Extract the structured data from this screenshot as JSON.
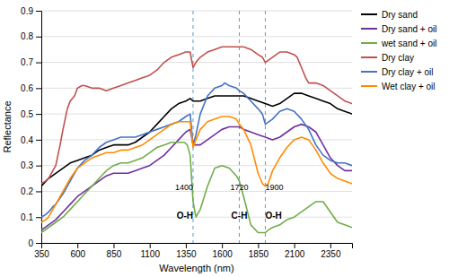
{
  "chart_data": {
    "type": "line",
    "xlabel": "Wavelength (nm)",
    "ylabel": "Reflectance",
    "xlim": [
      350,
      2500
    ],
    "ylim": [
      0,
      0.9
    ],
    "xticks": [
      350,
      600,
      850,
      1100,
      1350,
      1600,
      1850,
      2100,
      2350
    ],
    "yticks": [
      0,
      0.1,
      0.2,
      0.3,
      0.4,
      0.5,
      0.6,
      0.7,
      0.8,
      0.9
    ],
    "grid": true,
    "legend": "right",
    "vlines": {
      "values": [
        1400,
        1720,
        1900
      ],
      "color": "#5B9BD5",
      "line_style": "dashed"
    },
    "annotations": [
      {
        "text": "1400",
        "x": 1400,
        "y": 0.215,
        "align": "right"
      },
      {
        "text": "1720",
        "x": 1720,
        "y": 0.215,
        "align": "center"
      },
      {
        "text": "1900",
        "x": 1900,
        "y": 0.215,
        "align": "left"
      },
      {
        "text": "O-H",
        "x": 1400,
        "y": 0.105,
        "align": "right",
        "weight": "bold"
      },
      {
        "text": "C-H",
        "x": 1720,
        "y": 0.105,
        "align": "center",
        "weight": "bold"
      },
      {
        "text": "O-H",
        "x": 1900,
        "y": 0.105,
        "align": "left",
        "weight": "bold"
      }
    ],
    "series": [
      {
        "name": "Dry sand",
        "color": "#000000",
        "x": [
          350,
          400,
          450,
          500,
          550,
          600,
          650,
          700,
          750,
          800,
          850,
          900,
          950,
          1000,
          1050,
          1100,
          1150,
          1200,
          1250,
          1300,
          1350,
          1380,
          1400,
          1450,
          1500,
          1550,
          1600,
          1650,
          1700,
          1720,
          1750,
          1800,
          1850,
          1900,
          1950,
          2000,
          2050,
          2100,
          2150,
          2200,
          2250,
          2300,
          2350,
          2400,
          2450,
          2500
        ],
        "values": [
          0.22,
          0.25,
          0.27,
          0.29,
          0.31,
          0.32,
          0.33,
          0.34,
          0.36,
          0.37,
          0.38,
          0.38,
          0.38,
          0.39,
          0.41,
          0.43,
          0.46,
          0.49,
          0.52,
          0.54,
          0.55,
          0.56,
          0.55,
          0.55,
          0.56,
          0.57,
          0.57,
          0.57,
          0.57,
          0.57,
          0.57,
          0.56,
          0.55,
          0.54,
          0.53,
          0.54,
          0.56,
          0.58,
          0.58,
          0.57,
          0.56,
          0.55,
          0.54,
          0.52,
          0.51,
          0.5
        ]
      },
      {
        "name": "Dry sand + oil",
        "color": "#7030A0",
        "x": [
          350,
          400,
          450,
          500,
          550,
          600,
          650,
          700,
          750,
          800,
          850,
          900,
          950,
          1000,
          1050,
          1100,
          1150,
          1200,
          1250,
          1300,
          1350,
          1380,
          1400,
          1450,
          1500,
          1550,
          1600,
          1650,
          1700,
          1720,
          1750,
          1800,
          1850,
          1900,
          1950,
          2000,
          2050,
          2100,
          2150,
          2200,
          2250,
          2300,
          2350,
          2400,
          2450,
          2500
        ],
        "values": [
          0.05,
          0.07,
          0.09,
          0.12,
          0.15,
          0.18,
          0.2,
          0.22,
          0.24,
          0.26,
          0.27,
          0.27,
          0.27,
          0.28,
          0.29,
          0.3,
          0.32,
          0.34,
          0.37,
          0.4,
          0.43,
          0.44,
          0.38,
          0.38,
          0.4,
          0.42,
          0.44,
          0.45,
          0.45,
          0.45,
          0.44,
          0.43,
          0.42,
          0.41,
          0.4,
          0.41,
          0.43,
          0.45,
          0.46,
          0.45,
          0.43,
          0.38,
          0.33,
          0.3,
          0.28,
          0.28
        ]
      },
      {
        "name": "wet sand + oil",
        "color": "#70AD47",
        "x": [
          350,
          400,
          450,
          500,
          550,
          600,
          650,
          700,
          750,
          800,
          850,
          900,
          950,
          1000,
          1050,
          1100,
          1150,
          1200,
          1250,
          1300,
          1340,
          1360,
          1380,
          1400,
          1420,
          1450,
          1500,
          1550,
          1600,
          1650,
          1700,
          1720,
          1750,
          1800,
          1850,
          1880,
          1900,
          1920,
          1950,
          2000,
          2050,
          2100,
          2150,
          2200,
          2250,
          2300,
          2350,
          2400,
          2450,
          2500
        ],
        "values": [
          0.04,
          0.06,
          0.08,
          0.1,
          0.13,
          0.16,
          0.19,
          0.22,
          0.25,
          0.28,
          0.3,
          0.31,
          0.31,
          0.32,
          0.33,
          0.35,
          0.37,
          0.38,
          0.39,
          0.39,
          0.39,
          0.38,
          0.34,
          0.16,
          0.1,
          0.13,
          0.22,
          0.29,
          0.3,
          0.29,
          0.26,
          0.24,
          0.18,
          0.07,
          0.04,
          0.04,
          0.04,
          0.05,
          0.06,
          0.07,
          0.09,
          0.1,
          0.12,
          0.14,
          0.16,
          0.16,
          0.12,
          0.08,
          0.07,
          0.06
        ]
      },
      {
        "name": "Dry clay",
        "color": "#C0504D",
        "x": [
          350,
          380,
          400,
          430,
          450,
          480,
          500,
          530,
          550,
          580,
          600,
          630,
          650,
          700,
          750,
          800,
          850,
          900,
          950,
          1000,
          1050,
          1100,
          1150,
          1200,
          1250,
          1300,
          1350,
          1380,
          1400,
          1420,
          1450,
          1500,
          1550,
          1600,
          1650,
          1700,
          1720,
          1750,
          1800,
          1850,
          1880,
          1900,
          1950,
          2000,
          2050,
          2100,
          2120,
          2150,
          2180,
          2200,
          2250,
          2300,
          2350,
          2400,
          2450,
          2500
        ],
        "values": [
          0.23,
          0.24,
          0.25,
          0.28,
          0.3,
          0.38,
          0.44,
          0.52,
          0.55,
          0.57,
          0.6,
          0.61,
          0.61,
          0.6,
          0.6,
          0.59,
          0.6,
          0.61,
          0.62,
          0.63,
          0.64,
          0.65,
          0.67,
          0.7,
          0.72,
          0.73,
          0.74,
          0.74,
          0.68,
          0.7,
          0.72,
          0.74,
          0.75,
          0.76,
          0.76,
          0.76,
          0.76,
          0.76,
          0.75,
          0.73,
          0.72,
          0.7,
          0.72,
          0.74,
          0.74,
          0.73,
          0.72,
          0.68,
          0.64,
          0.62,
          0.62,
          0.61,
          0.59,
          0.57,
          0.55,
          0.54
        ]
      },
      {
        "name": "Dry clay + oil",
        "color": "#4472C4",
        "x": [
          350,
          380,
          400,
          430,
          450,
          500,
          550,
          600,
          650,
          700,
          750,
          800,
          850,
          900,
          950,
          1000,
          1050,
          1100,
          1150,
          1200,
          1250,
          1300,
          1350,
          1380,
          1400,
          1420,
          1450,
          1500,
          1550,
          1600,
          1620,
          1650,
          1700,
          1720,
          1750,
          1800,
          1850,
          1880,
          1900,
          1950,
          2000,
          2050,
          2100,
          2150,
          2200,
          2250,
          2300,
          2350,
          2400,
          2450,
          2500
        ],
        "values": [
          0.1,
          0.11,
          0.12,
          0.14,
          0.15,
          0.19,
          0.24,
          0.29,
          0.32,
          0.34,
          0.37,
          0.39,
          0.4,
          0.41,
          0.41,
          0.41,
          0.42,
          0.43,
          0.44,
          0.45,
          0.46,
          0.47,
          0.49,
          0.5,
          0.38,
          0.42,
          0.5,
          0.57,
          0.6,
          0.61,
          0.62,
          0.61,
          0.6,
          0.59,
          0.58,
          0.55,
          0.52,
          0.5,
          0.46,
          0.48,
          0.51,
          0.52,
          0.51,
          0.48,
          0.44,
          0.38,
          0.34,
          0.32,
          0.31,
          0.31,
          0.3
        ]
      },
      {
        "name": "Wet clay + oil",
        "color": "#FF8C00",
        "x": [
          350,
          380,
          400,
          430,
          450,
          500,
          550,
          600,
          650,
          700,
          750,
          800,
          850,
          900,
          950,
          1000,
          1050,
          1100,
          1150,
          1200,
          1250,
          1300,
          1350,
          1380,
          1400,
          1420,
          1450,
          1500,
          1550,
          1600,
          1650,
          1700,
          1720,
          1750,
          1800,
          1850,
          1880,
          1900,
          1920,
          1950,
          2000,
          2050,
          2100,
          2150,
          2200,
          2250,
          2300,
          2350,
          2400,
          2450,
          2500
        ],
        "values": [
          0.08,
          0.09,
          0.1,
          0.13,
          0.15,
          0.2,
          0.25,
          0.29,
          0.31,
          0.33,
          0.34,
          0.35,
          0.35,
          0.36,
          0.36,
          0.37,
          0.38,
          0.4,
          0.42,
          0.44,
          0.46,
          0.47,
          0.47,
          0.47,
          0.37,
          0.4,
          0.44,
          0.47,
          0.48,
          0.49,
          0.49,
          0.48,
          0.46,
          0.44,
          0.38,
          0.27,
          0.23,
          0.22,
          0.23,
          0.28,
          0.33,
          0.37,
          0.4,
          0.41,
          0.4,
          0.36,
          0.31,
          0.27,
          0.25,
          0.24,
          0.23
        ]
      }
    ]
  }
}
